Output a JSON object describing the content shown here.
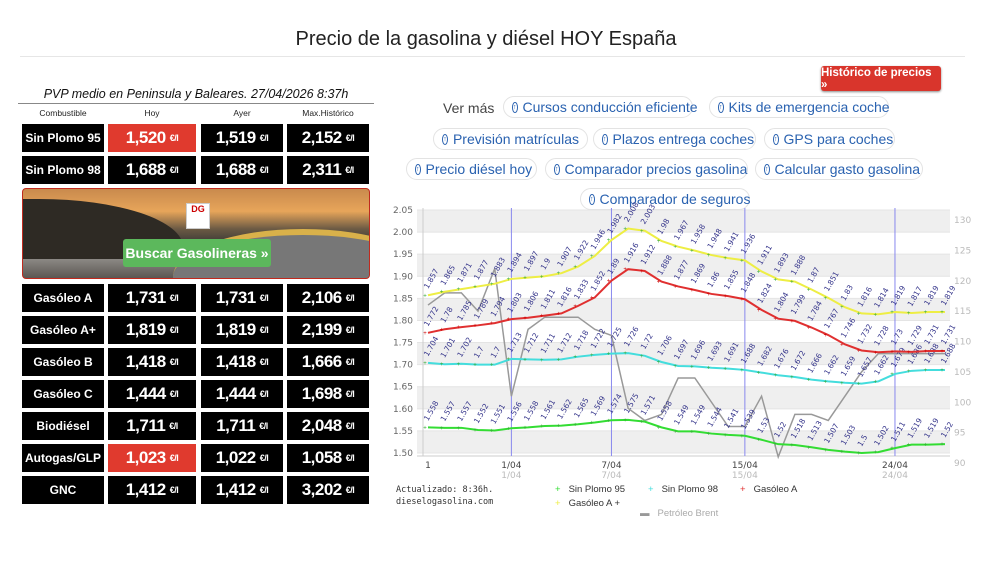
{
  "page_title": "Precio de la gasolina y diésel HOY España",
  "table": {
    "caption": "PVP medio en Peninsula y Baleares. 27/04/2026 8:37h",
    "headers": [
      "Combustible",
      "Hoy",
      "Ayer",
      "Max.Histórico"
    ],
    "unit": "€/l",
    "rows": [
      {
        "fuel": "Sin Plomo 95",
        "hoy": "1,520",
        "ayer": "1,519",
        "max": "2,152",
        "hoy_highlight": true
      },
      {
        "fuel": "Sin Plomo 98",
        "hoy": "1,688",
        "ayer": "1,688",
        "max": "2,311",
        "hoy_highlight": false
      },
      {
        "fuel": "Gasóleo A",
        "hoy": "1,731",
        "ayer": "1,731",
        "max": "2,106",
        "hoy_highlight": false
      },
      {
        "fuel": "Gasóleo A+",
        "hoy": "1,819",
        "ayer": "1,819",
        "max": "2,199",
        "hoy_highlight": false
      },
      {
        "fuel": "Gasóleo B",
        "hoy": "1,418",
        "ayer": "1,418",
        "max": "1,666",
        "hoy_highlight": false
      },
      {
        "fuel": "Gasóleo C",
        "hoy": "1,444",
        "ayer": "1,444",
        "max": "1,698",
        "hoy_highlight": false
      },
      {
        "fuel": "Biodiésel",
        "hoy": "1,711",
        "ayer": "1,711",
        "max": "2,048",
        "hoy_highlight": false
      },
      {
        "fuel": "Autogas/GLP",
        "hoy": "1,023",
        "ayer": "1,022",
        "max": "1,058",
        "hoy_highlight": true
      },
      {
        "fuel": "GNC",
        "hoy": "1,412",
        "ayer": "1,412",
        "max": "3,202",
        "hoy_highlight": false
      }
    ]
  },
  "banner": {
    "logo_text": "DG",
    "button": "Buscar Gasolineras »"
  },
  "historico_button": "Histórico de precios »",
  "ver_mas": "Ver más",
  "links": [
    "Cursos conducción eficiente",
    "Kits de emergencia coche",
    "Previsión matrículas",
    "Plazos entrega coches",
    "GPS para coches",
    "Precio diésel hoy",
    "Comparador precios gasolina",
    "Calcular gasto gasolina",
    "Comparador de seguros"
  ],
  "colors": {
    "highlight": "#e03a2e",
    "sp95": "#33dd33",
    "sp98": "#44dddd",
    "gasoleo_a": "#e03030",
    "gasoleo_a_plus": "#eeee44",
    "brent": "#999999",
    "link": "#2a62b0"
  },
  "chart_updated": [
    "Actualizado: 8:36h.",
    "dieselogasolina.com"
  ],
  "chart_data": {
    "type": "line",
    "grid": true,
    "legend": "bottom",
    "x_ticks": [
      {
        "index": 0,
        "label": "1"
      },
      {
        "index": 5,
        "label": "1/04",
        "sub": "1/04"
      },
      {
        "index": 11,
        "label": "7/04",
        "sub": "7/04"
      },
      {
        "index": 19,
        "label": "15/04",
        "sub": "15/04"
      },
      {
        "index": 28,
        "label": "24/04",
        "sub": "24/04"
      }
    ],
    "y_left": {
      "range": [
        1.5,
        2.05
      ],
      "ticks": [
        "1.50",
        "1.55",
        "1.60",
        "1.65",
        "1.70",
        "1.75",
        "1.80",
        "1.85",
        "1.90",
        "1.95",
        "2.00",
        "2.05"
      ]
    },
    "y_right": {
      "range": [
        90,
        130
      ],
      "ticks": [
        "90",
        "95",
        "100",
        "105",
        "110",
        "115",
        "120",
        "125",
        "130"
      ]
    },
    "series": [
      {
        "name": "Sin Plomo 95",
        "color": "#33dd33",
        "axis": "left",
        "labels": true,
        "values": [
          1.558,
          1.557,
          1.557,
          1.552,
          1.551,
          1.556,
          1.558,
          1.561,
          1.562,
          1.565,
          1.569,
          1.574,
          1.575,
          1.571,
          1.558,
          1.549,
          1.549,
          1.544,
          1.541,
          1.539,
          1.53,
          1.52,
          1.518,
          1.513,
          1.507,
          1.503,
          1.5,
          1.502,
          1.511,
          1.519,
          1.519,
          1.52
        ]
      },
      {
        "name": "Sin Plomo 98",
        "color": "#44dddd",
        "axis": "left",
        "labels": true,
        "values": [
          1.704,
          1.701,
          1.702,
          1.7,
          1.7,
          1.713,
          1.712,
          1.711,
          1.712,
          1.718,
          1.722,
          1.725,
          1.726,
          1.72,
          1.706,
          1.697,
          1.696,
          1.693,
          1.691,
          1.688,
          1.682,
          1.676,
          1.672,
          1.666,
          1.662,
          1.659,
          1.657,
          1.662,
          1.679,
          1.686,
          1.688,
          1.688
        ]
      },
      {
        "name": "Gasóleo A",
        "color": "#e03030",
        "axis": "left",
        "labels": true,
        "values": [
          1.772,
          1.78,
          1.785,
          1.789,
          1.794,
          1.803,
          1.806,
          1.811,
          1.816,
          1.833,
          1.852,
          1.89,
          1.916,
          1.912,
          1.888,
          1.877,
          1.869,
          1.86,
          1.855,
          1.848,
          1.824,
          1.804,
          1.799,
          1.784,
          1.767,
          1.746,
          1.732,
          1.728,
          1.73,
          1.729,
          1.731,
          1.731
        ]
      },
      {
        "name": "Gasóleo A +",
        "color": "#eeee44",
        "axis": "left",
        "labels": true,
        "values": [
          1.857,
          1.865,
          1.871,
          1.877,
          1.883,
          1.894,
          1.897,
          1.9,
          1.907,
          1.922,
          1.946,
          1.982,
          2.008,
          2.003,
          1.98,
          1.967,
          1.958,
          1.948,
          1.941,
          1.936,
          1.911,
          1.893,
          1.888,
          1.87,
          1.851,
          1.83,
          1.816,
          1.814,
          1.819,
          1.817,
          1.819,
          1.819
        ]
      },
      {
        "name": "Petróleo Brent",
        "color": "#999999",
        "axis": "right",
        "labels": false,
        "values": [
          116,
          118,
          118,
          115,
          122,
          101,
          112,
          114,
          114,
          114,
          112,
          111,
          99,
          97,
          98,
          104,
          104,
          100,
          96,
          96,
          101,
          91,
          98,
          98,
          97,
          101,
          105,
          108,
          108,
          108,
          108,
          108
        ]
      }
    ]
  }
}
